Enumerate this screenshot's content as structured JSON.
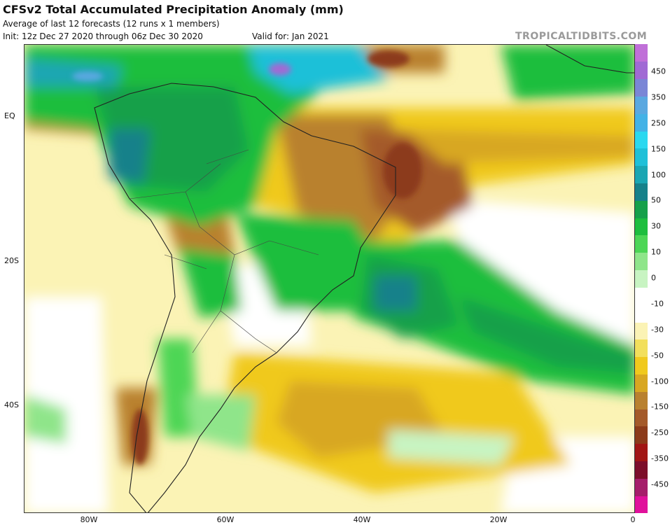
{
  "header": {
    "title": "CFSv2 Total Accumulated Precipitation Anomaly (mm)",
    "subtitle": "Average of last 12 forecasts (12 runs x 1 members)",
    "init": "Init: 12z Dec 27 2020 through 06z Dec 30 2020",
    "valid": "Valid for: Jan 2021",
    "brand": "TROPICALTIDBITS.COM"
  },
  "map": {
    "lat_labels": [
      "EQ",
      "20S",
      "40S"
    ],
    "lon_labels": [
      "80W",
      "60W",
      "40W",
      "20W",
      "0"
    ]
  },
  "colorbar": {
    "labels": [
      "450",
      "350",
      "250",
      "150",
      "100",
      "50",
      "30",
      "10",
      "0",
      "-10",
      "-30",
      "-50",
      "-100",
      "-150",
      "-250",
      "-350",
      "-450"
    ],
    "colors": [
      "#e0119b",
      "#a51e6a",
      "#7c0e2a",
      "#a11614",
      "#8c3b1a",
      "#a45a2a",
      "#b9812f",
      "#d8a722",
      "#f0c91d",
      "#f2df5c",
      "#fbf3b5",
      "#ffffff",
      "#ffffff",
      "#c8f4c2",
      "#8fe58a",
      "#4dd655",
      "#1ebe3e",
      "#16a04a",
      "#16818a",
      "#1aa6b3",
      "#1fc0d8",
      "#2ad8f0",
      "#43b2e6",
      "#5aa8e0",
      "#7a86d6",
      "#a06ad4",
      "#c070d8"
    ]
  }
}
